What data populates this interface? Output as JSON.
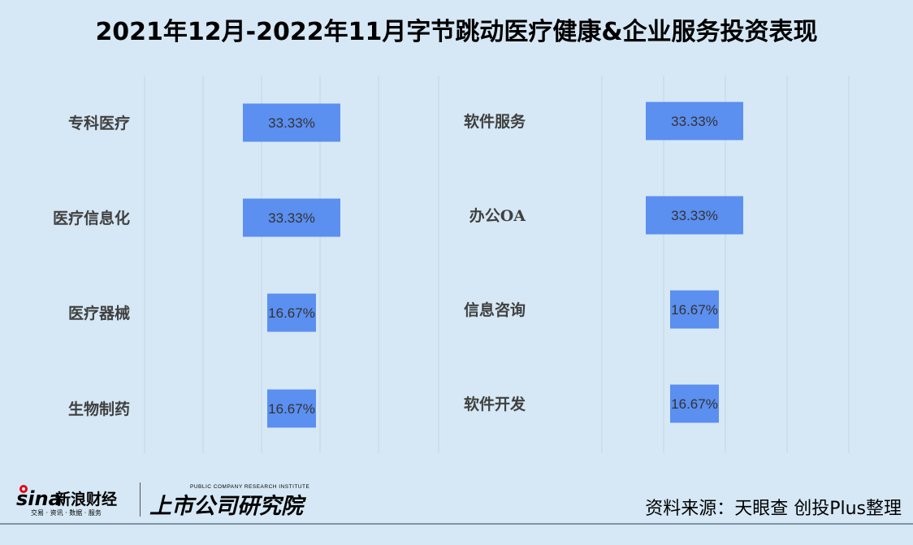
{
  "title": "2021年12月-2022年11月字节跳动医疗健康&企业服务投资表现",
  "source": "资料来源：天眼查 创投Plus整理",
  "logo": {
    "sina_brand": "sina",
    "sina_name": "新浪财经",
    "sina_sub": "交易 · 资讯 · 数据 · 服务",
    "institute_en": "PUBLIC COMPANY RESEARCH INSTITUTE",
    "institute_cn": "上市公司研究院"
  },
  "colors": {
    "bar": "#5b8ff0",
    "background": "#d6e8f5",
    "grid": "#c4d4e2"
  },
  "chart_data": [
    {
      "type": "bar",
      "orientation": "horizontal-centered",
      "categories": [
        "专科医疗",
        "医疗信息化",
        "医疗器械",
        "生物制药"
      ],
      "values": [
        33.33,
        33.33,
        16.67,
        16.67
      ],
      "value_labels": [
        "33.33%",
        "33.33%",
        "16.67%",
        "16.67%"
      ],
      "grid": true
    },
    {
      "type": "bar",
      "orientation": "horizontal-centered",
      "categories": [
        "软件服务",
        "办公OA",
        "信息咨询",
        "软件开发"
      ],
      "values": [
        33.33,
        33.33,
        16.67,
        16.67
      ],
      "value_labels": [
        "33.33%",
        "33.33%",
        "16.67%",
        "16.67%"
      ],
      "grid": true
    }
  ]
}
